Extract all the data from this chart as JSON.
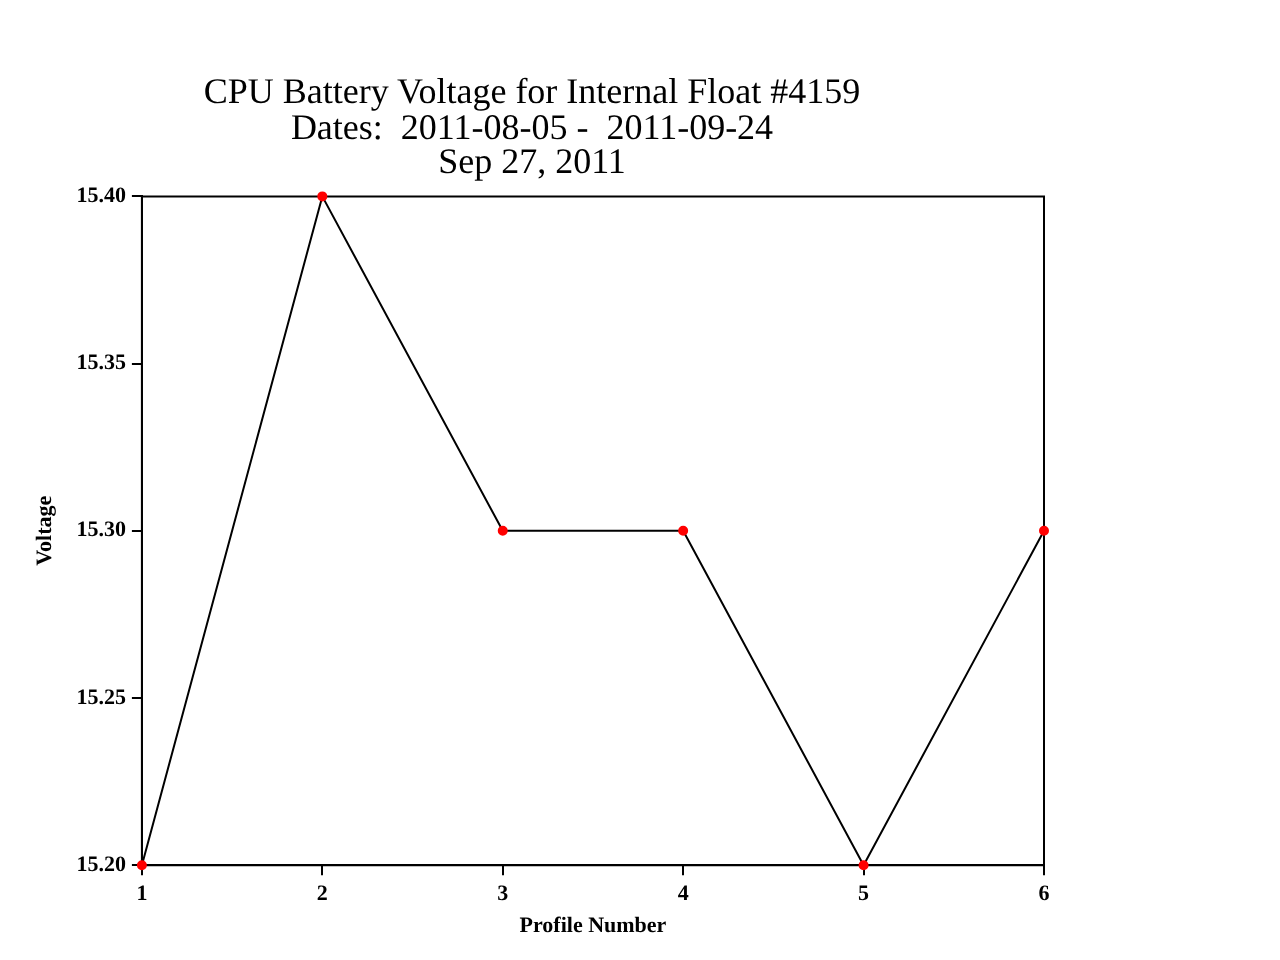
{
  "chart_data": {
    "type": "line",
    "title": "CPU Battery Voltage for Internal Float #4159",
    "subtitle": "Dates:  2011-08-05 -  2011-09-24\nSep 27, 2011",
    "xlabel": "Profile Number",
    "ylabel": "Voltage",
    "x": [
      1,
      2,
      3,
      4,
      5,
      6
    ],
    "series": [
      {
        "color": "#000000",
        "colors": [
          "#ff0000",
          "#ff0000",
          "#ff0000",
          "#ff0000",
          "#ff0000",
          "#ff0000"
        ],
        "values": [
          15.2,
          15.4,
          15.3,
          15.3,
          15.2,
          15.3
        ]
      }
    ],
    "xlim": [
      1,
      6
    ],
    "xticks": [
      1,
      2,
      3,
      4,
      5,
      6
    ],
    "ylim": [
      15.2,
      15.4
    ],
    "yticks": [
      {
        "value": 15.2,
        "label": "15.20"
      },
      {
        "value": 15.25,
        "label": "15.25"
      },
      {
        "value": 15.3,
        "label": "15.30"
      },
      {
        "value": 15.35,
        "label": "15.35"
      },
      {
        "value": 15.4,
        "label": "15.40"
      }
    ],
    "grid": false,
    "legend": false,
    "marker": "circle",
    "line_style": "solid"
  }
}
